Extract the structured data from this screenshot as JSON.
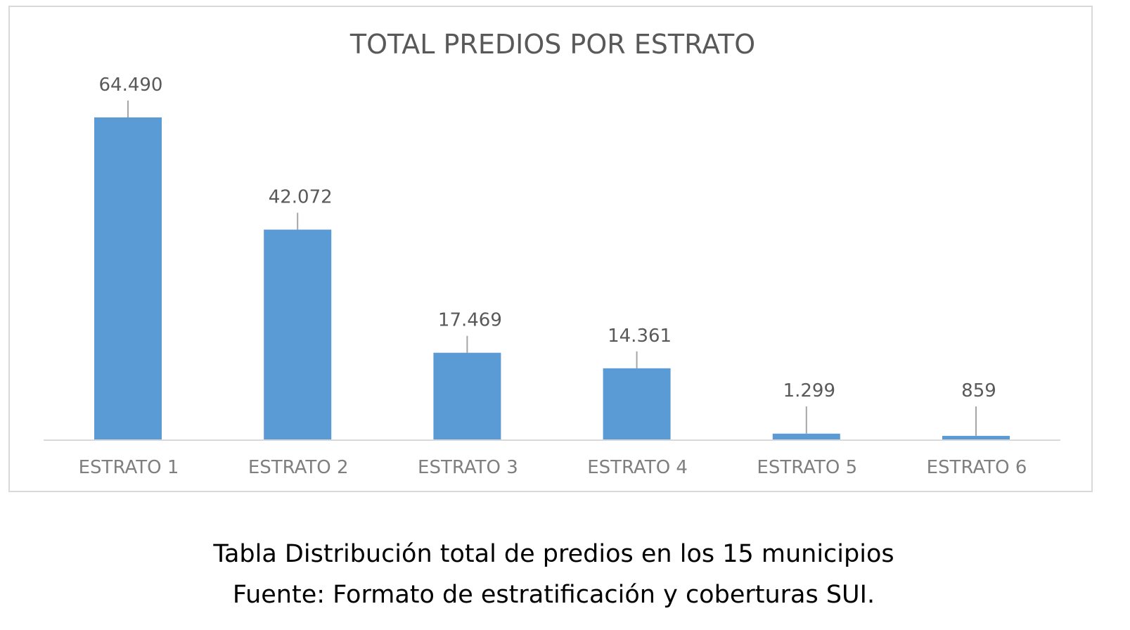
{
  "chart_data": {
    "type": "bar",
    "title": "TOTAL PREDIOS POR ESTRATO",
    "categories": [
      "ESTRATO 1",
      "ESTRATO 2",
      "ESTRATO 3",
      "ESTRATO 4",
      "ESTRATO 5",
      "ESTRATO 6"
    ],
    "values": [
      64490,
      42072,
      17469,
      14361,
      1299,
      859
    ],
    "data_labels": [
      "64.490",
      "42.072",
      "17.469",
      "14.361",
      "1.299",
      "859"
    ],
    "xlabel": "",
    "ylabel": "",
    "ylim": [
      0,
      64490
    ],
    "grid": false,
    "legend": "none",
    "bar_color": "#5B9BD5"
  },
  "caption": {
    "line1": "Tabla  Distribución total de predios en los 15 municipios",
    "line2": "Fuente: Formato de estratificación y coberturas SUI."
  }
}
